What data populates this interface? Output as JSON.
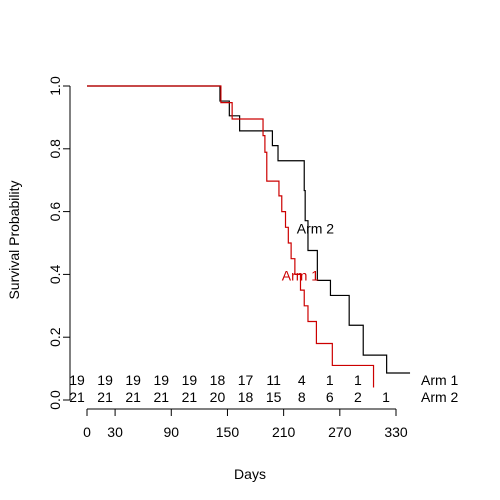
{
  "chart_data": {
    "type": "line",
    "subtype": "kaplan-meier step",
    "title": "",
    "xlabel": "Days",
    "ylabel": "Survival Probability",
    "xlim": [
      0,
      330
    ],
    "ylim": [
      0,
      1
    ],
    "xticks": [
      0,
      30,
      90,
      150,
      210,
      270,
      330
    ],
    "yticks": [
      0.0,
      0.2,
      0.4,
      0.6,
      0.8,
      1.0
    ],
    "ytick_labels": [
      "0.0",
      "0.2",
      "0.4",
      "0.6",
      "0.8",
      "1.0"
    ],
    "series": [
      {
        "name": "Arm 2",
        "color": "#000000",
        "label_at": [
          224,
          0.53
        ],
        "x": [
          0,
          142,
          152,
          163,
          190,
          198,
          204,
          232,
          233,
          236,
          246,
          260,
          280,
          295,
          320,
          345
        ],
        "y": [
          1.0,
          0.952,
          0.905,
          0.857,
          0.857,
          0.81,
          0.762,
          0.667,
          0.571,
          0.476,
          0.381,
          0.333,
          0.238,
          0.143,
          0.086,
          0.086
        ]
      },
      {
        "name": "Arm 1",
        "color": "#cc0000",
        "label_at": [
          208,
          0.38
        ],
        "x": [
          0,
          143,
          155,
          168,
          188,
          190,
          192,
          205,
          208,
          212,
          215,
          218,
          222,
          228,
          232,
          236,
          245,
          262,
          306
        ],
        "y": [
          1.0,
          0.947,
          0.895,
          0.895,
          0.842,
          0.789,
          0.697,
          0.65,
          0.6,
          0.55,
          0.5,
          0.45,
          0.4,
          0.35,
          0.3,
          0.25,
          0.18,
          0.11,
          0.04
        ]
      }
    ],
    "risk_table": {
      "times": [
        0,
        30,
        60,
        90,
        120,
        150,
        180,
        210,
        240,
        270,
        300,
        330
      ],
      "rows": [
        {
          "name": "Arm 1",
          "color": "#000000",
          "counts": [
            "19",
            "19",
            "19",
            "19",
            "19",
            "18",
            "17",
            "11",
            "4",
            "1",
            "1",
            ""
          ]
        },
        {
          "name": "Arm 2",
          "color": "#000000",
          "counts": [
            "21",
            "21",
            "21",
            "21",
            "21",
            "20",
            "18",
            "15",
            "8",
            "6",
            "2",
            "1"
          ]
        }
      ]
    }
  }
}
